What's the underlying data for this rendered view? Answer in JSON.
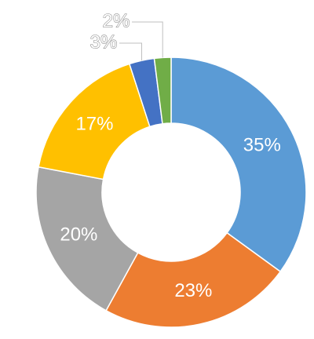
{
  "chart_data": {
    "type": "donut",
    "values": [
      35,
      23,
      20,
      17,
      3,
      2
    ],
    "value_labels": [
      "35%",
      "23%",
      "20%",
      "17%",
      "3%",
      "2%"
    ],
    "colors": [
      "#5b9bd5",
      "#ed7d31",
      "#a5a5a5",
      "#ffc000",
      "#4472c4",
      "#70ad47"
    ]
  }
}
